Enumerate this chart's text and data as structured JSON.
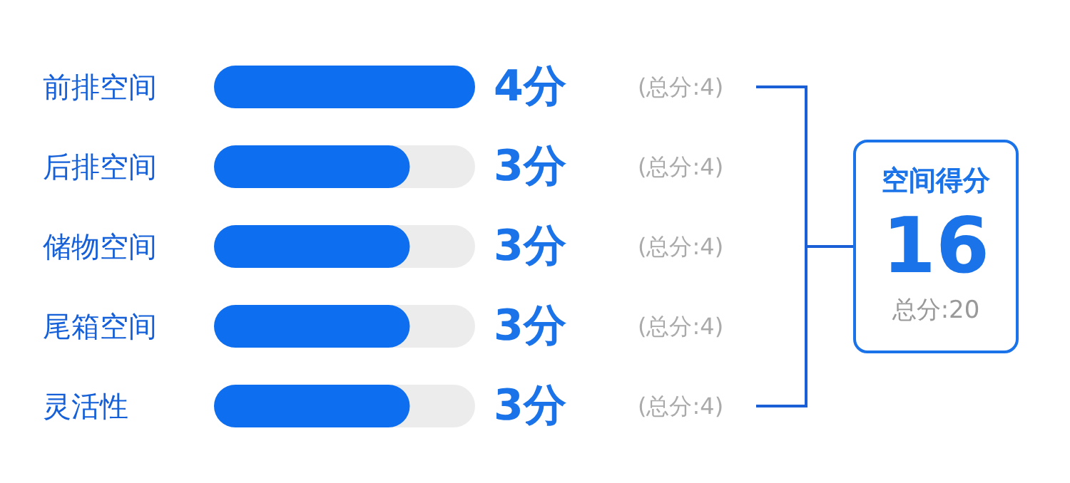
{
  "chart_data": {
    "type": "bar",
    "orientation": "horizontal",
    "categories": [
      "前排空间",
      "后排空间",
      "储物空间",
      "尾箱空间",
      "灵活性"
    ],
    "values": [
      4,
      3,
      3,
      3,
      3
    ],
    "value_labels": [
      "4分",
      "3分",
      "3分",
      "3分",
      "3分"
    ],
    "color": "#0d6ef0",
    "xlim": [
      0,
      4
    ],
    "tick_labels": "y",
    "annotations": [
      "(总分:4)",
      "(总分:4)",
      "(总分:4)",
      "(总分:4)",
      "(总分:4)",
      "空间得分",
      "16",
      "总分:20"
    ]
  }
}
